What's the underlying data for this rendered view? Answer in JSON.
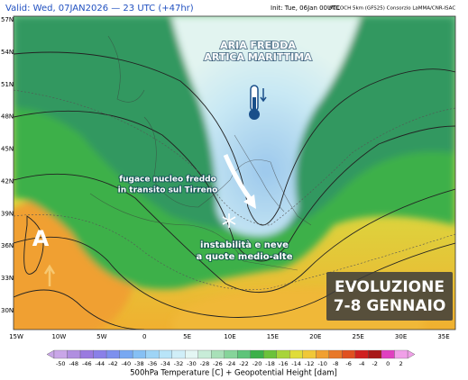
{
  "header": {
    "valid": "Valid: Wed, 07JAN2026 — 23 UTC (+47hr)",
    "init": "Init: Tue, 06Jan 00UTC",
    "model": "MOLOCH 5km (GFS25) Consorzio LaMMA/CNR-ISAC"
  },
  "map": {
    "latitudes": [
      "57N",
      "54N",
      "51N",
      "48N",
      "45N",
      "42N",
      "39N",
      "36N",
      "33N",
      "30N"
    ],
    "longitudes": [
      "15W",
      "10W",
      "5W",
      "0",
      "5E",
      "10E",
      "15E",
      "20E",
      "25E",
      "30E",
      "35E"
    ],
    "annotations": {
      "cold_air": [
        "ARIA FREDDA",
        "ARTICA MARITTIMA"
      ],
      "cold_core": [
        "fugace nucleo freddo",
        "in transito sul Tirreno"
      ],
      "instability": [
        "instabilità e neve",
        "a quote medio-alte"
      ],
      "anticyclone": "A",
      "evolution": [
        "EVOLUZIONE",
        "7-8 GENNAIO"
      ]
    }
  },
  "legend": {
    "ticks": [
      -50,
      -48,
      -46,
      -44,
      -42,
      -40,
      -38,
      -36,
      -34,
      -32,
      -30,
      -28,
      -26,
      -24,
      -22,
      -20,
      -18,
      -16,
      -14,
      -12,
      -10,
      -8,
      -6,
      -4,
      -2,
      0,
      2
    ],
    "colors": [
      "#c9a6e8",
      "#b08ee0",
      "#9a7ae0",
      "#8a80e8",
      "#7d90ee",
      "#78a8f2",
      "#86c0f4",
      "#9ed4f6",
      "#b8e4f8",
      "#d0eef8",
      "#e4f6f4",
      "#c8ecd8",
      "#a8e0b8",
      "#86d49a",
      "#5ec47a",
      "#3cb04a",
      "#6cc23a",
      "#a8d43a",
      "#e0dc3a",
      "#f0c838",
      "#f0a030",
      "#e87828",
      "#e05020",
      "#d02020",
      "#a81818",
      "#e040c0",
      "#f0a0e8"
    ],
    "caption": "500hPa Temperature [C] + Geopotential Height [dam]"
  }
}
